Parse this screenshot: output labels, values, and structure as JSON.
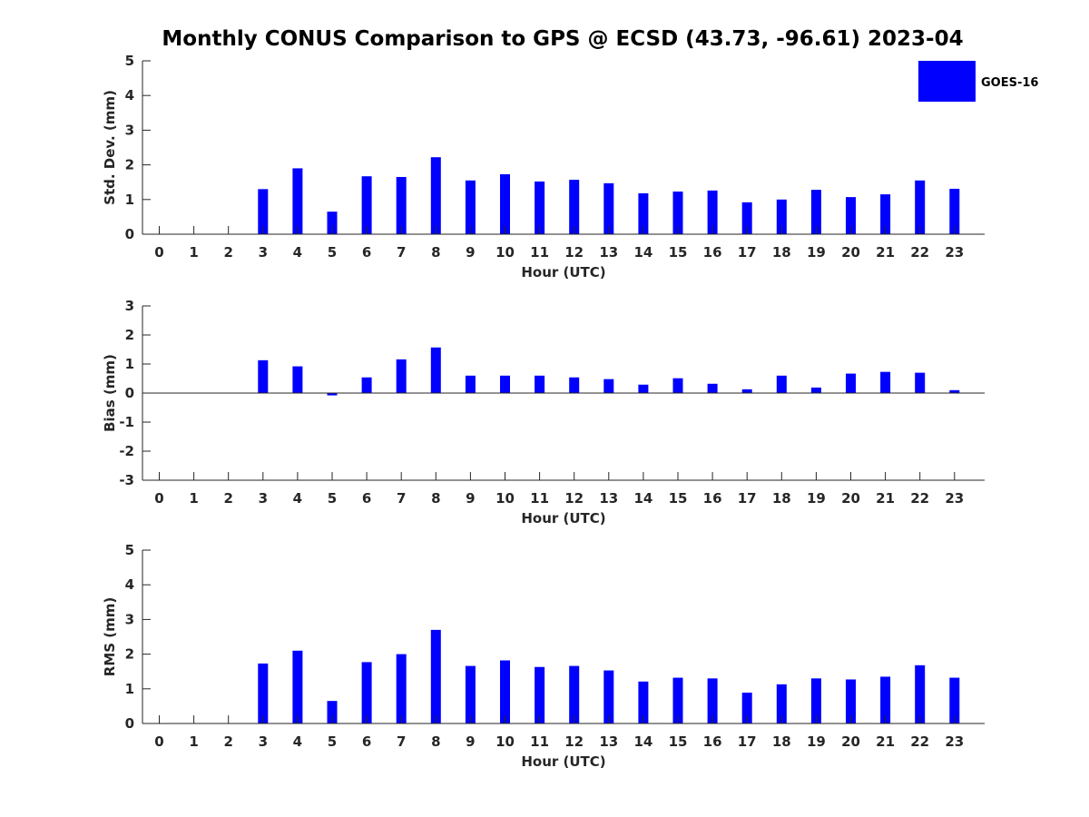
{
  "figure": {
    "title": "Monthly CONUS Comparison to GPS @ ECSD (43.73, -96.61) 2023-04"
  },
  "colors": {
    "bar": "#0000ff",
    "axis": "#262626"
  },
  "legend": {
    "label": "GOES-16",
    "placement": "top-right"
  },
  "chart_data": [
    {
      "type": "bar",
      "ylabel": "Std. Dev. (mm)",
      "xlabel": "Hour (UTC)",
      "ylim": [
        0,
        5
      ],
      "yticks": [
        0,
        1,
        2,
        3,
        4,
        5
      ],
      "categories": [
        "0",
        "1",
        "2",
        "3",
        "4",
        "5",
        "6",
        "7",
        "8",
        "9",
        "10",
        "11",
        "12",
        "13",
        "14",
        "15",
        "16",
        "17",
        "18",
        "19",
        "20",
        "21",
        "22",
        "23"
      ],
      "series": [
        {
          "name": "GOES-16",
          "values": [
            0,
            0,
            0,
            1.3,
            1.9,
            0.65,
            1.67,
            1.65,
            2.22,
            1.55,
            1.73,
            1.52,
            1.57,
            1.47,
            1.18,
            1.23,
            1.26,
            0.92,
            1.0,
            1.28,
            1.07,
            1.15,
            1.55,
            1.31
          ]
        }
      ],
      "grid": false
    },
    {
      "type": "bar",
      "ylabel": "Bias (mm)",
      "xlabel": "Hour (UTC)",
      "ylim": [
        -3,
        3
      ],
      "yticks": [
        -3,
        -2,
        -1,
        0,
        1,
        2,
        3
      ],
      "categories": [
        "0",
        "1",
        "2",
        "3",
        "4",
        "5",
        "6",
        "7",
        "8",
        "9",
        "10",
        "11",
        "12",
        "13",
        "14",
        "15",
        "16",
        "17",
        "18",
        "19",
        "20",
        "21",
        "22",
        "23"
      ],
      "series": [
        {
          "name": "GOES-16",
          "values": [
            0,
            0,
            0,
            1.13,
            0.92,
            -0.08,
            0.54,
            1.16,
            1.57,
            0.6,
            0.6,
            0.6,
            0.54,
            0.48,
            0.29,
            0.51,
            0.32,
            0.13,
            0.6,
            0.19,
            0.67,
            0.73,
            0.7,
            0.1
          ]
        }
      ],
      "grid": false
    },
    {
      "type": "bar",
      "ylabel": "RMS (mm)",
      "xlabel": "Hour (UTC)",
      "ylim": [
        0,
        5
      ],
      "yticks": [
        0,
        1,
        2,
        3,
        4,
        5
      ],
      "categories": [
        "0",
        "1",
        "2",
        "3",
        "4",
        "5",
        "6",
        "7",
        "8",
        "9",
        "10",
        "11",
        "12",
        "13",
        "14",
        "15",
        "16",
        "17",
        "18",
        "19",
        "20",
        "21",
        "22",
        "23"
      ],
      "series": [
        {
          "name": "GOES-16",
          "values": [
            0,
            0,
            0,
            1.73,
            2.1,
            0.65,
            1.77,
            2.0,
            2.7,
            1.66,
            1.82,
            1.63,
            1.66,
            1.53,
            1.21,
            1.32,
            1.3,
            0.89,
            1.13,
            1.3,
            1.27,
            1.35,
            1.68,
            1.32
          ]
        }
      ],
      "grid": false
    }
  ]
}
